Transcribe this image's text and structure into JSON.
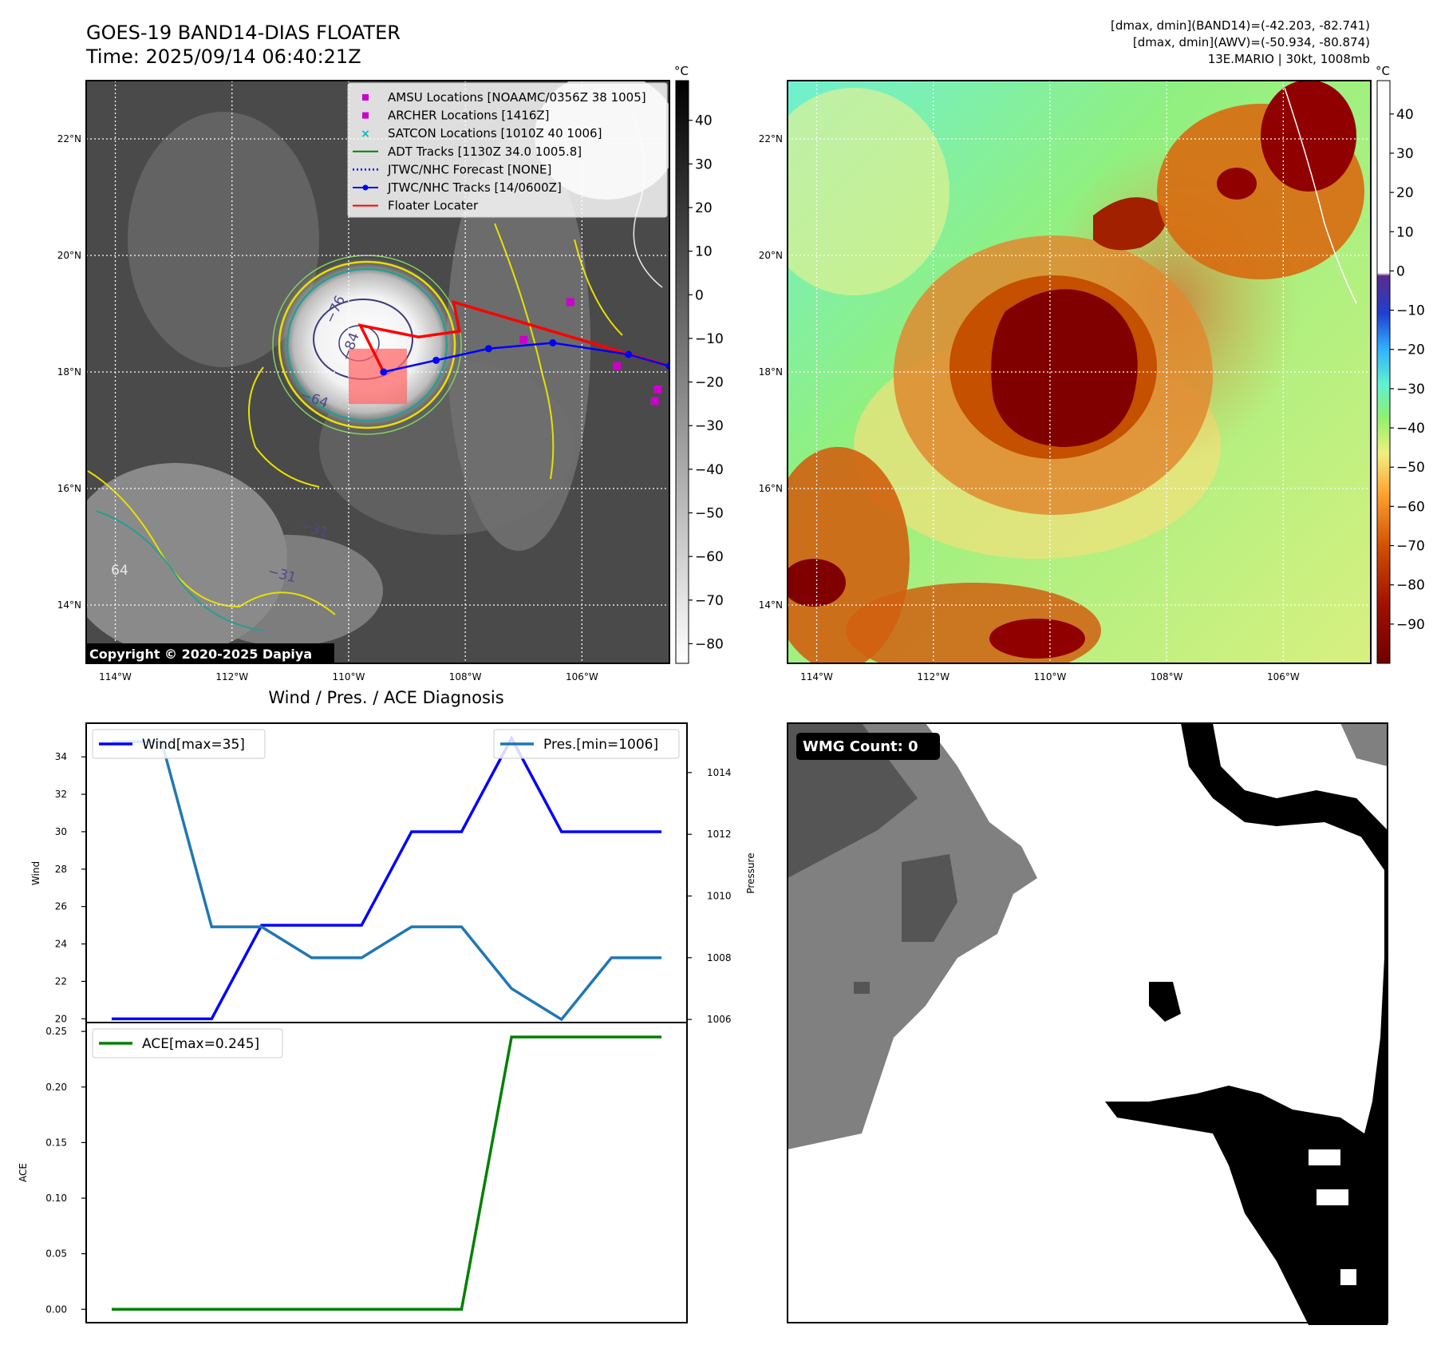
{
  "header": {
    "title_line1": "GOES-19 BAND14-DIAS FLOATER",
    "title_line2": "Time: 2025/09/14 06:40:21Z",
    "info_line1": "[dmax, dmin](BAND14)=(-42.203, -82.741)",
    "info_line2": "[dmax, dmin](AWV)=(-50.934, -80.874)",
    "info_line3": "13E.MARIO | 30kt, 1008mb"
  },
  "maps": {
    "lon_ticks": [
      "114°W",
      "112°W",
      "110°W",
      "108°W",
      "106°W"
    ],
    "lat_ticks": [
      "22°N",
      "20°N",
      "18°N",
      "16°N",
      "14°N"
    ],
    "copyright": "Copyright © 2020-2025 Dapiya",
    "colorbar_unit": "°C",
    "left_colorbar_ticks": [
      "40",
      "30",
      "20",
      "10",
      "0",
      "−10",
      "−20",
      "−30",
      "−40",
      "−50",
      "−60",
      "−70",
      "−80"
    ],
    "right_colorbar_ticks": [
      "40",
      "30",
      "20",
      "10",
      "0",
      "−10",
      "−20",
      "−30",
      "−40",
      "−50",
      "−60",
      "−70",
      "−80",
      "−90"
    ],
    "contour_labels": [
      "−76",
      "−64",
      "−84",
      "−31",
      "64",
      "−31"
    ],
    "legend": [
      {
        "label": "AMSU Locations [NOAAMC/0356Z 38 1005]",
        "color": "#cc00cc",
        "marker": "square"
      },
      {
        "label": "ARCHER Locations [1416Z]",
        "color": "#cc00cc",
        "marker": "square"
      },
      {
        "label": "SATCON Locations [1010Z 40 1006]",
        "color": "#00bbbb",
        "marker": "x"
      },
      {
        "label": "ADT Tracks [1130Z 34.0 1005.8]",
        "color": "#008000",
        "marker": "line"
      },
      {
        "label": "JTWC/NHC Forecast [NONE]",
        "color": "#0000ff",
        "marker": "dotted"
      },
      {
        "label": "JTWC/NHC Tracks [14/0600Z]",
        "color": "#0000ff",
        "marker": "line-dot"
      },
      {
        "label": "Floater Locater",
        "color": "#ff0000",
        "marker": "line"
      }
    ]
  },
  "tracks": {
    "jtwc": [
      [
        -109.4,
        18.0
      ],
      [
        -108.5,
        18.2
      ],
      [
        -107.6,
        18.4
      ],
      [
        -106.5,
        18.5
      ],
      [
        -105.2,
        18.3
      ],
      [
        -104.5,
        18.1
      ]
    ],
    "floater": [
      [
        -109.4,
        18.0
      ],
      [
        -109.8,
        18.8
      ],
      [
        -108.8,
        18.6
      ],
      [
        -108.1,
        18.7
      ],
      [
        -108.2,
        19.2
      ],
      [
        -104.5,
        18.1
      ]
    ],
    "amsu": [
      [
        -106.2,
        19.2
      ],
      [
        -107.0,
        18.55
      ],
      [
        -105.4,
        18.1
      ],
      [
        -104.7,
        17.7
      ],
      [
        -104.75,
        17.5
      ]
    ]
  },
  "diagnosis": {
    "title": "Wind / Pres. / ACE Diagnosis",
    "wind_ylabel": "Wind",
    "pres_ylabel": "Pressure",
    "ace_ylabel": "ACE",
    "wind_legend": "Wind[max=35]",
    "pres_legend": "Pres.[min=1006]",
    "ace_legend": "ACE[max=0.245]",
    "wind_ticks": [
      "34",
      "32",
      "30",
      "28",
      "26",
      "24",
      "22",
      "20"
    ],
    "pres_ticks": [
      "1014",
      "1012",
      "1010",
      "1008",
      "1006"
    ],
    "ace_ticks": [
      "0.25",
      "0.20",
      "0.15",
      "0.10",
      "0.05",
      "0.00"
    ]
  },
  "wmg": {
    "label": "WMG Count: 0"
  },
  "chart_data": [
    {
      "type": "line",
      "title": "Wind / Pres. / ACE Diagnosis",
      "ylabel": "Wind",
      "ylim": [
        19.8,
        35.8
      ],
      "series": [
        {
          "name": "Wind[max=35]",
          "color": "#0000ff",
          "axis": "left",
          "x": [
            0,
            1,
            2,
            3,
            4,
            5,
            6,
            7,
            8,
            9,
            10,
            11
          ],
          "values": [
            20,
            20,
            20,
            25,
            25,
            25,
            30,
            30,
            35,
            30,
            30,
            30
          ]
        }
      ]
    },
    {
      "type": "line",
      "ylabel": "Pressure",
      "ylim": [
        1005.9,
        1015.6
      ],
      "series": [
        {
          "name": "Pres.[min=1006]",
          "color": "#1f77b4",
          "axis": "right",
          "x": [
            0,
            1,
            2,
            3,
            4,
            5,
            6,
            7,
            8,
            9,
            10,
            11
          ],
          "values": [
            1015,
            1015,
            1009,
            1009,
            1008,
            1008,
            1009,
            1009,
            1007,
            1006,
            1008,
            1008
          ]
        }
      ]
    },
    {
      "type": "line",
      "ylabel": "ACE",
      "ylim": [
        -0.012,
        0.258
      ],
      "series": [
        {
          "name": "ACE[max=0.245]",
          "color": "#008000",
          "x": [
            0,
            1,
            2,
            3,
            4,
            5,
            6,
            7,
            8,
            9,
            10,
            11
          ],
          "values": [
            0,
            0,
            0,
            0,
            0,
            0,
            0,
            0,
            0.245,
            0.245,
            0.245,
            0.245
          ]
        }
      ]
    }
  ]
}
